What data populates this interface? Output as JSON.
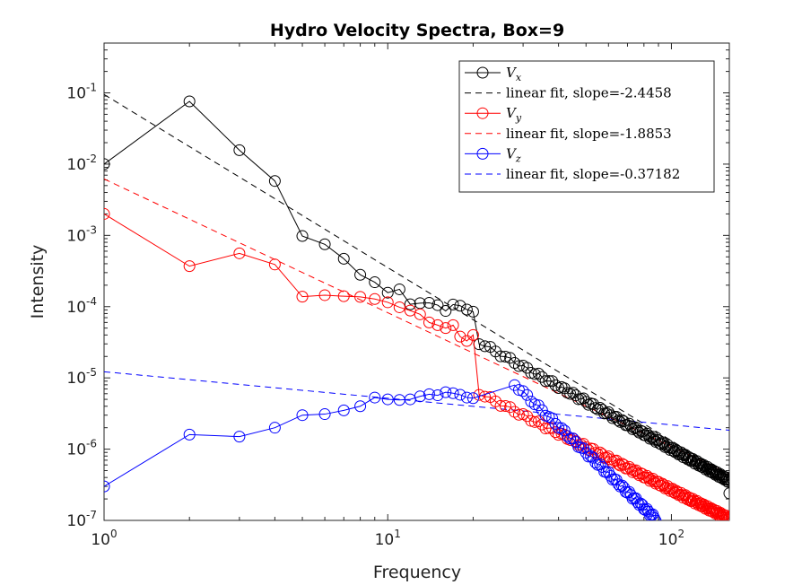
{
  "chart_data": {
    "type": "scatter",
    "title": "Hydro Velocity Spectra, Box=9",
    "xlabel": "Frequency",
    "ylabel": "Intensity",
    "xscale": "log",
    "yscale": "log",
    "xlim": [
      1,
      160
    ],
    "ylim": [
      1e-07,
      0.5
    ],
    "x_tick_labels": [
      {
        "value": 1,
        "base": "10",
        "exp": "0"
      },
      {
        "value": 10,
        "base": "10",
        "exp": "1"
      },
      {
        "value": 100,
        "base": "10",
        "exp": "2"
      }
    ],
    "y_tick_labels": [
      {
        "value": 1e-07,
        "base": "10",
        "exp": "-7"
      },
      {
        "value": 1e-06,
        "base": "10",
        "exp": "-6"
      },
      {
        "value": 1e-05,
        "base": "10",
        "exp": "-5"
      },
      {
        "value": 0.0001,
        "base": "10",
        "exp": "-4"
      },
      {
        "value": 0.001,
        "base": "10",
        "exp": "-3"
      },
      {
        "value": 0.01,
        "base": "10",
        "exp": "-2"
      },
      {
        "value": 0.1,
        "base": "10",
        "exp": "-1"
      }
    ],
    "grid": false,
    "legend_position": "top-right",
    "series": [
      {
        "name": "V_x",
        "label_base": "V",
        "label_sub": "x",
        "color": "#000000",
        "marker": "open-circle",
        "points": [
          [
            1,
            0.01
          ],
          [
            2,
            0.076
          ],
          [
            3,
            0.0157
          ],
          [
            4,
            0.0058
          ],
          [
            5,
            0.00098
          ],
          [
            6,
            0.00075
          ],
          [
            7,
            0.00047
          ],
          [
            8,
            0.00028
          ],
          [
            9,
            0.00022
          ],
          [
            10,
            0.000157
          ],
          [
            11,
            0.000175
          ],
          [
            12,
            0.000108
          ],
          [
            13,
            0.000112
          ],
          [
            14,
            0.000113
          ],
          [
            15,
            0.000105
          ],
          [
            16,
            8.7e-05
          ],
          [
            17,
            0.000107
          ],
          [
            18,
            0.000103
          ],
          [
            19,
            9.1e-05
          ],
          [
            20,
            8.5e-05
          ]
        ],
        "tail_fit": {
          "slope": -2.2,
          "x_start": 20,
          "x_end": 160,
          "y_end": 3.6e-07,
          "final_point": [
            160,
            2.4e-07
          ]
        }
      },
      {
        "name": "linear fit, slope=-2.4458",
        "color": "#000000",
        "style": "dashed",
        "line": [
          [
            1,
            0.095
          ],
          [
            160,
            4.2e-07
          ]
        ]
      },
      {
        "name": "V_y",
        "label_base": "V",
        "label_sub": "y",
        "color": "#ff0000",
        "marker": "open-circle",
        "points": [
          [
            1,
            0.002
          ],
          [
            2,
            0.00037
          ],
          [
            3,
            0.00056
          ],
          [
            4,
            0.00039
          ],
          [
            5,
            0.000138
          ],
          [
            6,
            0.000145
          ],
          [
            7,
            0.00014
          ],
          [
            8,
            0.000137
          ],
          [
            9,
            0.000128
          ],
          [
            10,
            0.000115
          ],
          [
            11,
            9.8e-05
          ],
          [
            12,
            8.8e-05
          ],
          [
            13,
            7.8e-05
          ],
          [
            14,
            6e-05
          ],
          [
            15,
            5.5e-05
          ],
          [
            16,
            5e-05
          ],
          [
            17,
            5.5e-05
          ],
          [
            18,
            3.8e-05
          ],
          [
            19,
            3.3e-05
          ],
          [
            20,
            4e-05
          ]
        ],
        "tail_fit": {
          "slope": -2.0,
          "x_start": 20,
          "x_end": 160,
          "y_end": 1.05e-07
        }
      },
      {
        "name": "linear fit, slope=-1.8853",
        "color": "#ff0000",
        "style": "dashed",
        "line": [
          [
            1,
            0.0062
          ],
          [
            160,
            4.5e-07
          ]
        ]
      },
      {
        "name": "V_z",
        "label_base": "V",
        "label_sub": "z",
        "color": "#0000ff",
        "marker": "open-circle",
        "points": [
          [
            1,
            3e-07
          ],
          [
            2,
            1.6e-06
          ],
          [
            3,
            1.5e-06
          ],
          [
            4,
            2e-06
          ],
          [
            5,
            3e-06
          ],
          [
            6,
            3.1e-06
          ],
          [
            7,
            3.5e-06
          ],
          [
            8,
            4e-06
          ],
          [
            9,
            5.3e-06
          ],
          [
            10,
            5e-06
          ],
          [
            11,
            4.9e-06
          ],
          [
            12,
            5e-06
          ],
          [
            13,
            5.5e-06
          ],
          [
            14,
            5.9e-06
          ],
          [
            15,
            5.7e-06
          ],
          [
            16,
            6.3e-06
          ],
          [
            17,
            6.1e-06
          ],
          [
            18,
            5.8e-06
          ],
          [
            19,
            5.3e-06
          ],
          [
            20,
            5.2e-06
          ]
        ],
        "tail_fit": {
          "slope": -3.8,
          "x_start": 27,
          "x_end": 88,
          "y_end": 1.05e-07
        }
      },
      {
        "name": "linear fit, slope=-0.37182",
        "color": "#0000ff",
        "style": "dashed",
        "line": [
          [
            1,
            1.22e-05
          ],
          [
            160,
            1.84e-06
          ]
        ]
      }
    ]
  }
}
